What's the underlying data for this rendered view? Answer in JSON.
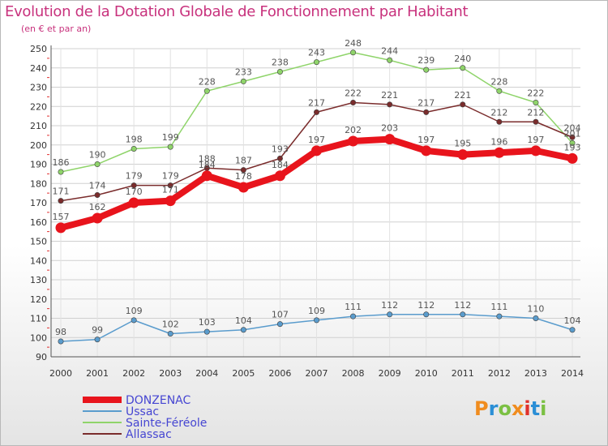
{
  "header": {
    "title": "Evolution de la Dotation Globale de Fonctionnement par Habitant",
    "subtitle": "(en € et par an)"
  },
  "logo": {
    "text": "Proxiti",
    "colors": [
      "#f08c1e",
      "#2b8fd6",
      "#7bc043",
      "#f08c1e",
      "#e0322c",
      "#2b8fd6",
      "#7bc043"
    ]
  },
  "chart_data": {
    "type": "line",
    "title": "Evolution de la Dotation Globale de Fonctionnement par Habitant",
    "subtitle": "(en € et par an)",
    "x": [
      2000,
      2001,
      2002,
      2003,
      2004,
      2005,
      2006,
      2007,
      2008,
      2009,
      2010,
      2011,
      2012,
      2013,
      2014
    ],
    "ylim": [
      90,
      250
    ],
    "yticks": [
      90,
      100,
      110,
      120,
      130,
      140,
      150,
      160,
      170,
      180,
      190,
      200,
      210,
      220,
      230,
      240,
      250
    ],
    "grid": true,
    "legend_position": "bottom-left",
    "series": [
      {
        "name": "DONZENAC",
        "color": "#e8141c",
        "values": [
          157,
          162,
          170,
          171,
          184,
          178,
          184,
          197,
          202,
          203,
          197,
          195,
          196,
          197,
          193
        ]
      },
      {
        "name": "Ussac",
        "color": "#5a9ccd",
        "values": [
          98,
          99,
          109,
          102,
          103,
          104,
          107,
          109,
          111,
          112,
          112,
          112,
          111,
          110,
          104
        ]
      },
      {
        "name": "Sainte-Féréole",
        "color": "#8fd46a",
        "values": [
          186,
          190,
          198,
          199,
          228,
          233,
          238,
          243,
          248,
          244,
          239,
          240,
          228,
          222,
          201
        ]
      },
      {
        "name": "Allassac",
        "color": "#7a2c2c",
        "values": [
          171,
          174,
          179,
          179,
          188,
          187,
          193,
          217,
          222,
          221,
          217,
          221,
          212,
          212,
          204
        ]
      }
    ]
  }
}
